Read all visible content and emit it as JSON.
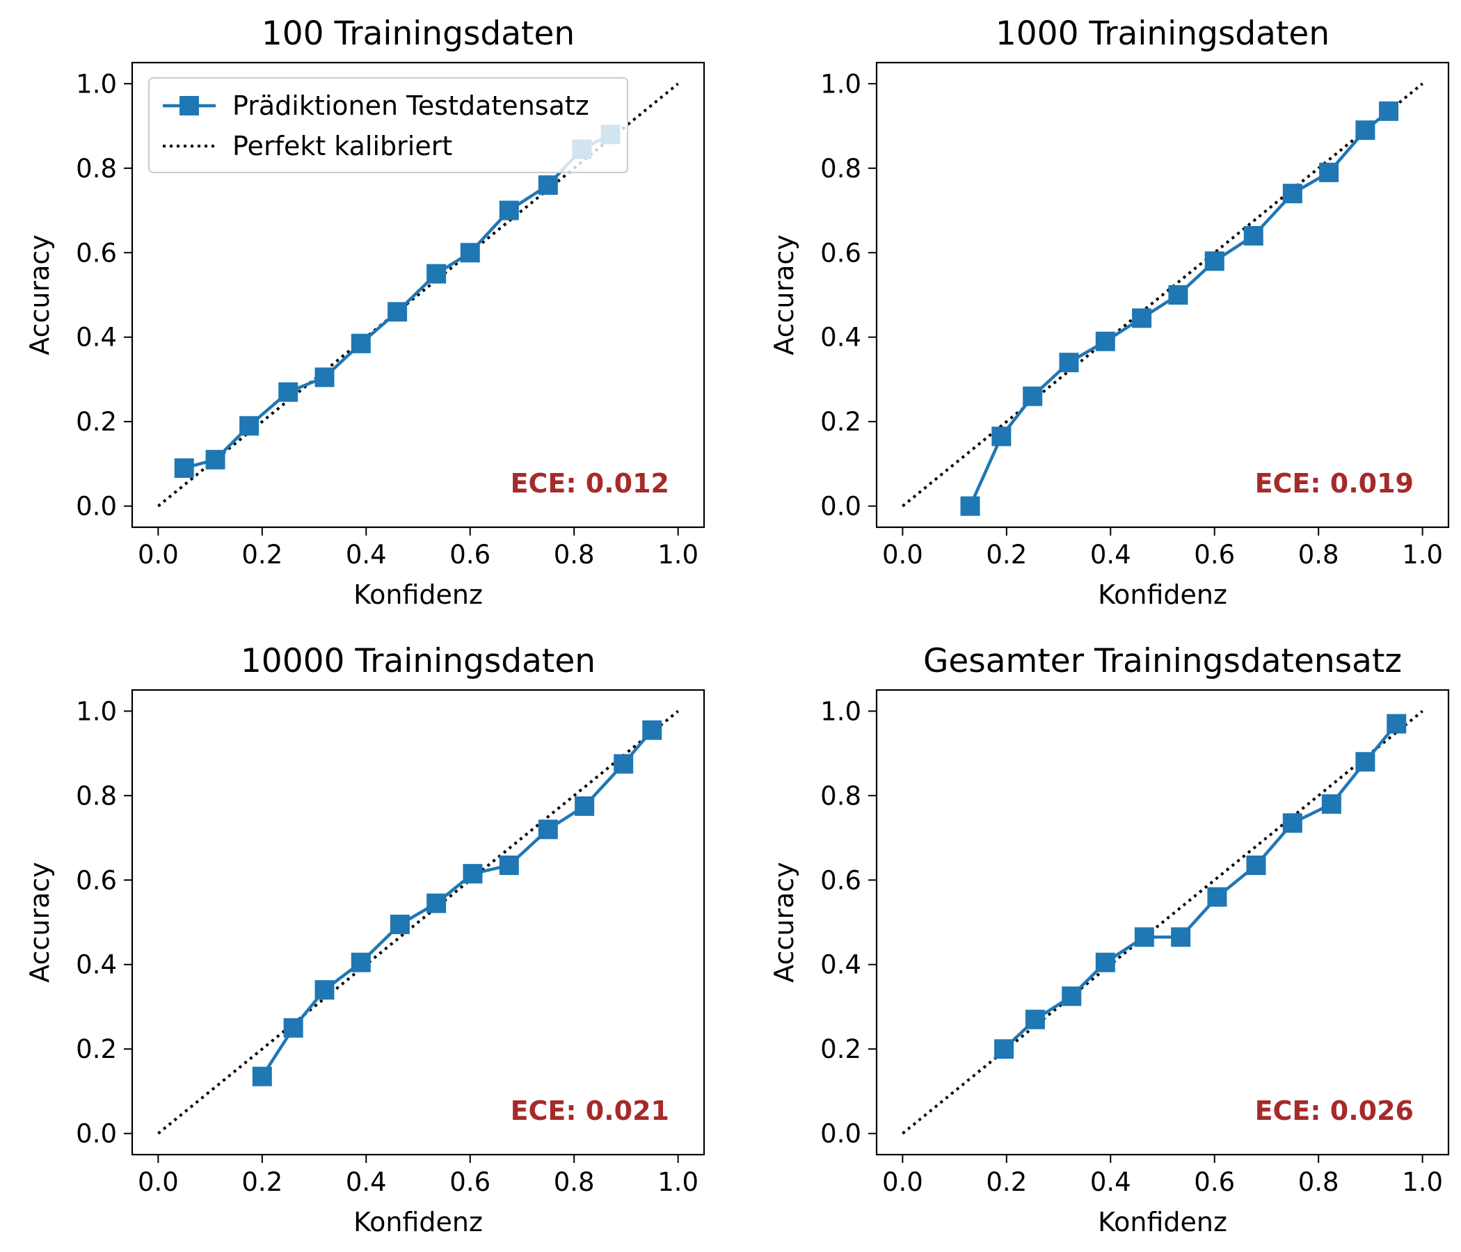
{
  "colors": {
    "series": "#1f77b4",
    "reference": "#000000",
    "ece": "#a52a2a"
  },
  "legend": {
    "placement": "upper-left",
    "entries": [
      "Prädiktionen Testdatensatz",
      "Perfekt kalibriert"
    ]
  },
  "chart_data": [
    {
      "type": "line",
      "title": "100 Trainingsdaten",
      "xlabel": "Konfidenz",
      "ylabel": "Accuracy",
      "xlim": [
        -0.05,
        1.05
      ],
      "ylim": [
        -0.05,
        1.05
      ],
      "ticks": [
        "0.0",
        "0.2",
        "0.4",
        "0.6",
        "0.8",
        "1.0"
      ],
      "has_legend": true,
      "ece_label": "ECE: 0.012",
      "x": [
        0.05,
        0.11,
        0.175,
        0.25,
        0.32,
        0.39,
        0.46,
        0.535,
        0.6,
        0.675,
        0.75,
        0.815,
        0.87
      ],
      "y": [
        0.09,
        0.11,
        0.19,
        0.27,
        0.305,
        0.385,
        0.46,
        0.55,
        0.6,
        0.7,
        0.76,
        0.845,
        0.88
      ]
    },
    {
      "type": "line",
      "title": "1000 Trainingsdaten",
      "xlabel": "Konfidenz",
      "ylabel": "Accuracy",
      "xlim": [
        -0.05,
        1.05
      ],
      "ylim": [
        -0.05,
        1.05
      ],
      "ticks": [
        "0.0",
        "0.2",
        "0.4",
        "0.6",
        "0.8",
        "1.0"
      ],
      "has_legend": false,
      "ece_label": "ECE: 0.019",
      "x": [
        0.13,
        0.19,
        0.25,
        0.32,
        0.39,
        0.46,
        0.53,
        0.6,
        0.675,
        0.75,
        0.82,
        0.89,
        0.935
      ],
      "y": [
        0.0,
        0.165,
        0.26,
        0.34,
        0.39,
        0.445,
        0.5,
        0.58,
        0.64,
        0.74,
        0.79,
        0.89,
        0.935
      ]
    },
    {
      "type": "line",
      "title": "10000 Trainingsdaten",
      "xlabel": "Konfidenz",
      "ylabel": "Accuracy",
      "xlim": [
        -0.05,
        1.05
      ],
      "ylim": [
        -0.05,
        1.05
      ],
      "ticks": [
        "0.0",
        "0.2",
        "0.4",
        "0.6",
        "0.8",
        "1.0"
      ],
      "has_legend": false,
      "ece_label": "ECE: 0.021",
      "x": [
        0.2,
        0.26,
        0.32,
        0.39,
        0.465,
        0.535,
        0.605,
        0.675,
        0.75,
        0.82,
        0.895,
        0.95
      ],
      "y": [
        0.135,
        0.25,
        0.34,
        0.405,
        0.495,
        0.545,
        0.615,
        0.635,
        0.72,
        0.775,
        0.875,
        0.955
      ]
    },
    {
      "type": "line",
      "title": "Gesamter Trainingsdatensatz",
      "xlabel": "Konfidenz",
      "ylabel": "Accuracy",
      "xlim": [
        -0.05,
        1.05
      ],
      "ylim": [
        -0.05,
        1.05
      ],
      "ticks": [
        "0.0",
        "0.2",
        "0.4",
        "0.6",
        "0.8",
        "1.0"
      ],
      "has_legend": false,
      "ece_label": "ECE: 0.026",
      "x": [
        0.195,
        0.255,
        0.325,
        0.39,
        0.465,
        0.535,
        0.605,
        0.68,
        0.75,
        0.825,
        0.89,
        0.95
      ],
      "y": [
        0.2,
        0.27,
        0.325,
        0.405,
        0.465,
        0.465,
        0.56,
        0.635,
        0.735,
        0.78,
        0.88,
        0.97
      ]
    }
  ]
}
